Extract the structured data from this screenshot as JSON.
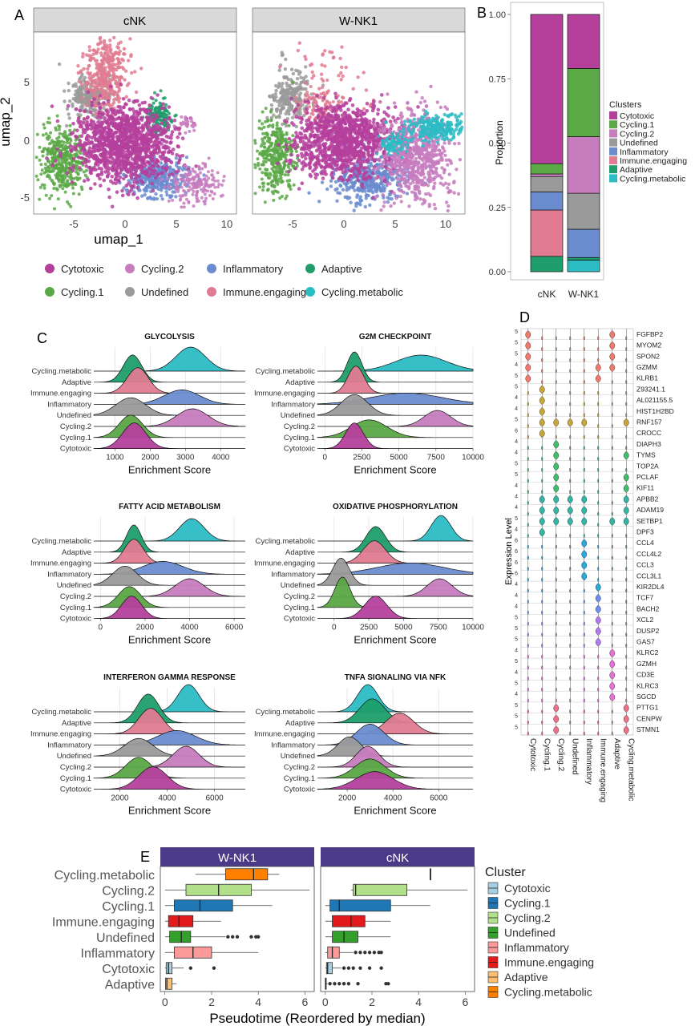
{
  "colors": {
    "Cytotoxic": "#b5409c",
    "Cycling.1": "#5aa846",
    "Cycling.2": "#c77cbe",
    "Undefined": "#9a9a9a",
    "Inflammatory": "#6a8ccf",
    "Immune.engaging": "#e07b91",
    "Adaptive": "#1f9e6b",
    "Cycling.metabolic": "#2bbcc4"
  },
  "colors_E": {
    "Cytotoxic": "#a6cee3",
    "Cycling.1": "#1f78b4",
    "Cycling.2": "#b2df8a",
    "Undefined": "#33a02c",
    "Inflammatory": "#fb9a99",
    "Immune.engaging": "#e31a1c",
    "Adaptive": "#fdbf6f",
    "Cycling.metabolic": "#ff7f00"
  },
  "clusters": [
    "Cytotoxic",
    "Cycling.2",
    "Inflammatory",
    "Adaptive",
    "Cycling.1",
    "Undefined",
    "Immune.engaging",
    "Cycling.metabolic"
  ],
  "panelA": {
    "letter": "A",
    "facets": [
      "cNK",
      "W-NK1"
    ],
    "xlabel": "umap_1",
    "ylabel": "umap_2",
    "xticks": [
      -5,
      0,
      5,
      10
    ],
    "yticks": [
      -5,
      0,
      5
    ]
  },
  "panelB": {
    "letter": "B",
    "chart_data": {
      "type": "bar",
      "categories": [
        "cNK",
        "W-NK1"
      ],
      "ylabel": "Proportion",
      "ylim": [
        0,
        1
      ],
      "yticks": [
        "0.00",
        "0.25",
        "0.50",
        "0.75",
        "1.00"
      ],
      "legend_title": "Clusters",
      "legend": [
        "Cytotoxic",
        "Cycling.1",
        "Cycling.2",
        "Undefined",
        "Inflammatory",
        "Immune.engaging",
        "Adaptive",
        "Cycling.metabolic"
      ],
      "stack_order_bottom_to_top": [
        "Cycling.metabolic",
        "Adaptive",
        "Immune.engaging",
        "Inflammatory",
        "Undefined",
        "Cycling.2",
        "Cycling.1",
        "Cytotoxic"
      ],
      "series": [
        {
          "name": "Cycling.metabolic",
          "values": [
            0.0,
            0.045
          ]
        },
        {
          "name": "Adaptive",
          "values": [
            0.06,
            0.01
          ]
        },
        {
          "name": "Immune.engaging",
          "values": [
            0.18,
            0.0
          ]
        },
        {
          "name": "Inflammatory",
          "values": [
            0.07,
            0.11
          ]
        },
        {
          "name": "Undefined",
          "values": [
            0.06,
            0.14
          ]
        },
        {
          "name": "Cycling.2",
          "values": [
            0.01,
            0.22
          ]
        },
        {
          "name": "Cycling.1",
          "values": [
            0.04,
            0.265
          ]
        },
        {
          "name": "Cytotoxic",
          "values": [
            0.58,
            0.21
          ]
        }
      ]
    }
  },
  "panelC": {
    "letter": "C",
    "xlabel": "Enrichment Score",
    "rows_top_to_bottom": [
      "Cycling.metabolic",
      "Adaptive",
      "Immune.engaging",
      "Inflammatory",
      "Undefined",
      "Cycling.2",
      "Cycling.1",
      "Cytotoxic"
    ],
    "chart_data": [
      {
        "type": "ridgeline",
        "title": "GLYCOLYSIS",
        "xlim": [
          400,
          4700
        ],
        "xticks": [
          1000,
          2000,
          3000,
          4000
        ],
        "peaks": {
          "Cycling.metabolic": [
            3150,
            420,
            1.5
          ],
          "Adaptive": [
            1500,
            260,
            1.7
          ],
          "Immune.engaging": [
            1650,
            300,
            1.6
          ],
          "Inflammatory": [
            2900,
            500,
            0.9
          ],
          "Undefined": [
            1450,
            420,
            1.1
          ],
          "Cycling.2": [
            3200,
            450,
            1.1
          ],
          "Cycling.1": [
            1450,
            330,
            1.4
          ],
          "Cytotoxic": [
            1550,
            330,
            1.6
          ]
        }
      },
      {
        "type": "ridgeline",
        "title": "G2M CHECKPOINT",
        "xlim": [
          -500,
          10000
        ],
        "xticks": [
          0,
          2500,
          5000,
          7500,
          10000
        ],
        "xticklabels": [
          "0",
          "2500",
          "5000",
          "7500",
          "10000"
        ],
        "peaks": {
          "Cycling.metabolic": [
            6500,
            1700,
            1.0
          ],
          "Adaptive": [
            2000,
            500,
            1.9
          ],
          "Immune.engaging": [
            2100,
            550,
            1.7
          ],
          "Inflammatory": [
            5500,
            2400,
            0.7
          ],
          "Undefined": [
            2000,
            900,
            1.3
          ],
          "Cycling.2": [
            7600,
            900,
            1.0
          ],
          "Cycling.1": [
            3000,
            1200,
            1.1
          ],
          "Cytotoxic": [
            2000,
            600,
            1.6
          ]
        }
      },
      {
        "type": "ridgeline",
        "title": "FATTY ACID METABOLISM",
        "xlim": [
          -300,
          6500
        ],
        "xticks": [
          0,
          2000,
          4000,
          6000
        ],
        "peaks": {
          "Cycling.metabolic": [
            4100,
            550,
            1.4
          ],
          "Adaptive": [
            1500,
            330,
            1.7
          ],
          "Immune.engaging": [
            1500,
            420,
            1.5
          ],
          "Inflammatory": [
            2800,
            900,
            0.8
          ],
          "Undefined": [
            1100,
            550,
            1.2
          ],
          "Cycling.2": [
            4000,
            650,
            1.1
          ],
          "Cycling.1": [
            1300,
            500,
            1.3
          ],
          "Cytotoxic": [
            1400,
            450,
            1.4
          ]
        }
      },
      {
        "type": "ridgeline",
        "title": "OXIDATIVE PHOSPHORYLATION",
        "xlim": [
          -1200,
          10000
        ],
        "xticks": [
          0,
          2500,
          5000,
          7500,
          10000
        ],
        "xticklabels": [
          "0",
          "2500",
          "5000",
          "7500",
          "10000"
        ],
        "peaks": {
          "Cycling.metabolic": [
            7700,
            700,
            1.6
          ],
          "Adaptive": [
            3000,
            700,
            1.6
          ],
          "Immune.engaging": [
            2900,
            800,
            1.4
          ],
          "Inflammatory": [
            5500,
            2400,
            0.7
          ],
          "Undefined": [
            500,
            600,
            1.7
          ],
          "Cycling.2": [
            7600,
            900,
            1.1
          ],
          "Cycling.1": [
            600,
            550,
            1.9
          ],
          "Cytotoxic": [
            3000,
            800,
            1.4
          ]
        }
      },
      {
        "type": "ridgeline",
        "title": "INTERFERON GAMMA RESPONSE",
        "xlim": [
          900,
          7300
        ],
        "xticks": [
          2000,
          4000,
          6000
        ],
        "peaks": {
          "Cycling.metabolic": [
            4900,
            450,
            1.7
          ],
          "Adaptive": [
            3200,
            450,
            1.8
          ],
          "Immune.engaging": [
            3300,
            500,
            1.6
          ],
          "Inflammatory": [
            4400,
            800,
            0.9
          ],
          "Undefined": [
            2800,
            600,
            1.1
          ],
          "Cycling.2": [
            4800,
            550,
            1.3
          ],
          "Cycling.1": [
            2800,
            550,
            1.3
          ],
          "Cytotoxic": [
            3400,
            600,
            1.4
          ]
        }
      },
      {
        "type": "ridgeline",
        "title": "TNFA SIGNALING VIA NFK",
        "xlim": [
          700,
          7500
        ],
        "xticks": [
          2000,
          4000,
          6000
        ],
        "peaks": {
          "Cycling.metabolic": [
            2900,
            450,
            1.7
          ],
          "Adaptive": [
            3100,
            550,
            1.5
          ],
          "Immune.engaging": [
            4300,
            600,
            1.3
          ],
          "Inflammatory": [
            3000,
            600,
            1.3
          ],
          "Undefined": [
            2100,
            500,
            1.2
          ],
          "Cycling.2": [
            2900,
            500,
            1.3
          ],
          "Cycling.1": [
            3000,
            650,
            1.2
          ],
          "Cytotoxic": [
            3200,
            800,
            1.1
          ]
        }
      }
    ]
  },
  "panelD": {
    "letter": "D",
    "ylabel": "Expression Level",
    "clusters": [
      "Cytotoxic",
      "Cycling.1",
      "Cycling.2",
      "Undefined",
      "Inflammatory",
      "Immune.engaging",
      "Adaptive",
      "Cycling.metabolic"
    ],
    "genes": [
      "FGFBP2",
      "MYOM2",
      "SPON2",
      "GZMM",
      "KLRB1",
      "Z93241.1",
      "AL021155.5",
      "HIST1H2BD",
      "RNF157",
      "CROCC",
      "DIAPH3",
      "TYMS",
      "TOP2A",
      "PCLAF",
      "KIF11",
      "APBB2",
      "ADAM19",
      "SETBP1",
      "DPF3",
      "CCL4",
      "CCL4L2",
      "CCL3",
      "CCL3L1",
      "KIR2DL4",
      "TCF7",
      "BACH2",
      "XCL2",
      "DUSP2",
      "GAS7",
      "KLRC2",
      "GZMH",
      "CD3E",
      "KLRC3",
      "SGCD",
      "PTTG1",
      "CENPW",
      "STMN1"
    ],
    "ymax_labels": [
      "5",
      "5",
      "5",
      "4",
      "5",
      "5",
      "4",
      "4",
      "5",
      "6",
      "4",
      "4",
      "5",
      "5",
      "4",
      "4",
      "4",
      "5",
      "4",
      "6",
      "6",
      "6",
      "6",
      "4",
      "4",
      "4",
      "5",
      "5",
      "5",
      "4",
      "5",
      "4",
      "5",
      "4",
      "5",
      "5",
      "5"
    ],
    "colors": [
      "#f07a6c",
      "#f07a6c",
      "#f07a6c",
      "#f07a6c",
      "#f07a6c",
      "#c9a63a",
      "#c9a63a",
      "#c9a63a",
      "#c9a63a",
      "#c9a63a",
      "#3dbf6b",
      "#3dbf6b",
      "#3dbf6b",
      "#3dbf6b",
      "#3dbf6b",
      "#33b6a5",
      "#33b6a5",
      "#33b6a5",
      "#33b6a5",
      "#2fa8d8",
      "#2fa8d8",
      "#2fa8d8",
      "#2fa8d8",
      "#2fa8d8",
      "#6f8ff0",
      "#6f8ff0",
      "#b27cf0",
      "#b27cf0",
      "#b27cf0",
      "#ea6fd7",
      "#ea6fd7",
      "#ea6fd7",
      "#ea6fd7",
      "#ea6fd7",
      "#f0708a",
      "#f0708a",
      "#f0708a"
    ],
    "high_cluster_by_gene": [
      [
        0,
        6
      ],
      [
        0,
        6
      ],
      [
        0,
        6
      ],
      [
        0,
        5,
        6
      ],
      [
        0,
        5
      ],
      [
        1
      ],
      [
        1
      ],
      [
        1
      ],
      [
        1,
        2,
        3,
        4,
        7
      ],
      [
        1
      ],
      [
        2
      ],
      [
        2,
        7
      ],
      [
        2
      ],
      [
        2,
        7
      ],
      [
        2,
        7
      ],
      [
        1,
        2,
        3,
        4,
        7
      ],
      [
        1,
        2,
        3,
        4,
        7
      ],
      [
        1,
        2,
        3,
        4,
        6,
        7
      ],
      [
        1
      ],
      [
        4
      ],
      [
        4
      ],
      [
        4
      ],
      [
        4
      ],
      [
        5
      ],
      [
        5
      ],
      [
        5
      ],
      [
        5
      ],
      [
        5
      ],
      [
        5
      ],
      [
        6
      ],
      [
        6
      ],
      [
        6
      ],
      [
        6
      ],
      [
        6
      ],
      [
        2,
        7
      ],
      [
        2,
        7
      ],
      [
        2,
        7
      ]
    ]
  },
  "panelE": {
    "letter": "E",
    "facets": [
      "W-NK1",
      "cNK"
    ],
    "xlabel": "Pseudotime (Reordered by median)",
    "xticks": [
      0,
      2,
      4,
      6
    ],
    "xlim": [
      -0.2,
      6.4
    ],
    "rows_top_to_bottom": [
      "Cycling.metabolic",
      "Cycling.2",
      "Cycling.1",
      "Immune.engaging",
      "Undefined",
      "Inflammatory",
      "Cytotoxic",
      "Adaptive"
    ],
    "legend_title": "Cluster",
    "legend": [
      "Cytotoxic",
      "Cycling.1",
      "Cycling.2",
      "Undefined",
      "Inflammatory",
      "Immune.engaging",
      "Adaptive",
      "Cycling.metabolic"
    ],
    "chart_data": {
      "type": "box",
      "facets": {
        "W-NK1": {
          "Cycling.metabolic": [
            1.3,
            2.6,
            3.8,
            4.4,
            4.9,
            []
          ],
          "Cycling.2": [
            0.0,
            0.9,
            2.3,
            3.7,
            6.2,
            []
          ],
          "Cycling.1": [
            0.0,
            0.4,
            1.5,
            2.9,
            4.6,
            []
          ],
          "Immune.engaging": [
            0.0,
            0.15,
            0.6,
            1.2,
            2.4,
            []
          ],
          "Undefined": [
            0.0,
            0.2,
            0.7,
            1.1,
            2.6,
            [
              2.7,
              2.9,
              3.1,
              3.7,
              3.9,
              4.0
            ]
          ],
          "Inflammatory": [
            0.0,
            0.4,
            1.2,
            2.0,
            4.0,
            []
          ],
          "Cytotoxic": [
            0.0,
            0.05,
            0.15,
            0.3,
            0.8,
            [
              1.1,
              2.1
            ]
          ],
          "Adaptive": [
            0.0,
            0.02,
            0.08,
            0.3,
            0.5,
            []
          ]
        },
        "cNK": {
          "Cycling.metabolic": [
            4.5,
            4.5,
            4.5,
            4.5,
            4.5,
            []
          ],
          "Cycling.2": [
            1.1,
            1.2,
            1.3,
            3.5,
            6.1,
            []
          ],
          "Cycling.1": [
            0.0,
            0.2,
            0.6,
            2.8,
            4.5,
            []
          ],
          "Immune.engaging": [
            0.0,
            0.3,
            1.1,
            1.7,
            2.8,
            []
          ],
          "Undefined": [
            0.0,
            0.3,
            0.8,
            1.4,
            2.8,
            []
          ],
          "Inflammatory": [
            0.0,
            0.1,
            0.3,
            0.6,
            1.2,
            [
              1.3,
              1.5,
              1.7,
              1.9,
              2.1,
              2.3,
              2.4
            ]
          ],
          "Cytotoxic": [
            0.0,
            0.05,
            0.1,
            0.3,
            0.7,
            [
              0.8,
              1.0,
              1.2,
              1.5,
              1.9,
              2.4
            ]
          ],
          "Adaptive": [
            0.0,
            0.0,
            0.02,
            0.04,
            0.1,
            [
              0.2,
              0.4,
              0.6,
              0.8,
              1.0,
              1.4,
              2.6,
              2.7
            ]
          ]
        }
      }
    }
  }
}
